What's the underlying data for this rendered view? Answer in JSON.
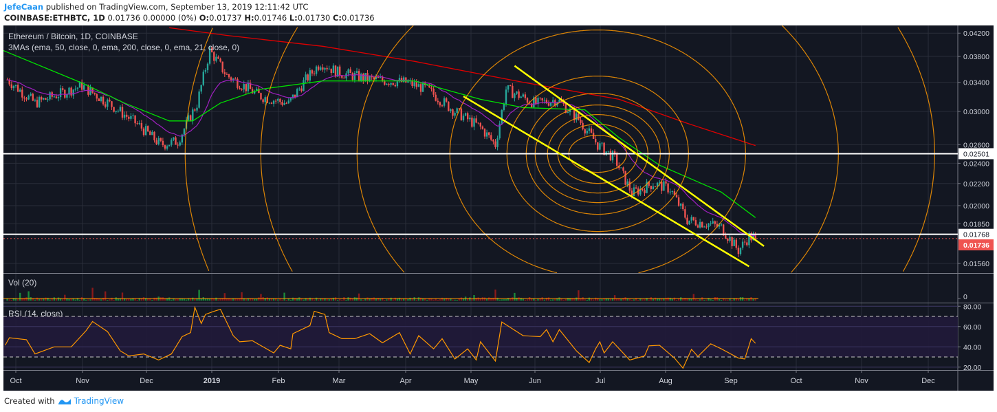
{
  "header": {
    "author": "JefeCaan",
    "published": "published on TradingView.com, September 13, 2019 12:11:42 UTC",
    "symbol": "COINBASE:ETHBTC, 1D",
    "last": "0.01736 0.00000 (0%)",
    "open_label": "O:",
    "open": "0.01737",
    "high_label": "H:",
    "high": "0.01746",
    "low_label": "L:",
    "low": "0.01730",
    "close_label": "C:",
    "close": "0.01736"
  },
  "footer": {
    "created_with": "Created with",
    "brand": "TradingView"
  },
  "colors": {
    "background": "#131722",
    "up": "#26a69a",
    "down": "#ef5350",
    "ema50": "#00e000",
    "ema200": "#e00000",
    "ema21": "#a020c0",
    "fib_circles": "#ff9800",
    "trendlines": "#ffff00",
    "rsi": "#ff9800",
    "rsi_band": "#211a3a"
  },
  "chart_data": [
    {
      "type": "candlestick",
      "title": "Ethereum / Bitcoin, 1D, COINBASE",
      "indicator_label": "3MAs (ema, 50, close, 0, ema, 200, close, 0, ema, 21, close, 0)",
      "scale": "log",
      "ylim": [
        0.015,
        0.0435
      ],
      "y_ticks": [
        "0.04200",
        "0.03800",
        "0.03400",
        "0.03000",
        "0.02600",
        "0.02400",
        "0.02200",
        "0.02000",
        "0.01850",
        "0.01560"
      ],
      "x_ticks": [
        "Oct",
        "Nov",
        "Dec",
        "2019",
        "Feb",
        "Mar",
        "Apr",
        "May",
        "Jun",
        "Jul",
        "Aug",
        "Sep",
        "Oct",
        "Nov",
        "Dec"
      ],
      "grid": true,
      "close_path": [
        [
          "2018-09-27",
          0.0344
        ],
        [
          "2018-10-10",
          0.0311
        ],
        [
          "2018-11-01",
          0.0335
        ],
        [
          "2018-11-14",
          0.031
        ],
        [
          "2018-11-27",
          0.0284
        ],
        [
          "2018-12-08",
          0.026
        ],
        [
          "2018-12-16",
          0.0264
        ],
        [
          "2018-12-25",
          0.031
        ],
        [
          "2018-12-31",
          0.039
        ],
        [
          "2019-01-08",
          0.035
        ],
        [
          "2019-01-24",
          0.032
        ],
        [
          "2019-02-06",
          0.031
        ],
        [
          "2019-02-13",
          0.034
        ],
        [
          "2019-02-21",
          0.037
        ],
        [
          "2019-03-01",
          0.0355
        ],
        [
          "2019-03-17",
          0.0344
        ],
        [
          "2019-04-02",
          0.034
        ],
        [
          "2019-04-12",
          0.033
        ],
        [
          "2019-04-24",
          0.0302
        ],
        [
          "2019-05-07",
          0.028
        ],
        [
          "2019-05-14",
          0.026
        ],
        [
          "2019-05-19",
          0.033
        ],
        [
          "2019-06-02",
          0.031
        ],
        [
          "2019-06-12",
          0.0316
        ],
        [
          "2019-06-22",
          0.029
        ],
        [
          "2019-07-01",
          0.026
        ],
        [
          "2019-07-09",
          0.0245
        ],
        [
          "2019-07-17",
          0.0211
        ],
        [
          "2019-07-27",
          0.022
        ],
        [
          "2019-08-04",
          0.0215
        ],
        [
          "2019-08-12",
          0.0188
        ],
        [
          "2019-08-22",
          0.0185
        ],
        [
          "2019-08-28",
          0.0182
        ],
        [
          "2019-09-05",
          0.0165
        ],
        [
          "2019-09-10",
          0.0175
        ],
        [
          "2019-09-13",
          0.01736
        ]
      ],
      "ema200": [
        [
          "2018-12-12",
          0.043
        ],
        [
          "2019-01-08",
          0.0416
        ],
        [
          "2019-02-22",
          0.0397
        ],
        [
          "2019-04-06",
          0.0372
        ],
        [
          "2019-05-27",
          0.034
        ],
        [
          "2019-07-11",
          0.0316
        ],
        [
          "2019-08-12",
          0.0285
        ],
        [
          "2019-09-13",
          0.0259
        ]
      ],
      "ema50": [
        [
          "2018-09-25",
          0.039
        ],
        [
          "2018-11-01",
          0.0339
        ],
        [
          "2018-11-21",
          0.0311
        ],
        [
          "2018-12-12",
          0.0288
        ],
        [
          "2018-12-23",
          0.0288
        ],
        [
          "2019-01-05",
          0.0311
        ],
        [
          "2019-01-24",
          0.033
        ],
        [
          "2019-02-22",
          0.0342
        ],
        [
          "2019-04-06",
          0.0342
        ],
        [
          "2019-05-07",
          0.0316
        ],
        [
          "2019-05-27",
          0.0305
        ],
        [
          "2019-06-25",
          0.0302
        ],
        [
          "2019-07-11",
          0.0268
        ],
        [
          "2019-07-30",
          0.0238
        ],
        [
          "2019-08-28",
          0.0212
        ],
        [
          "2019-09-13",
          0.019
        ]
      ],
      "horizontal_lines": [
        {
          "price": "0.02501",
          "color": "#ffffff"
        },
        {
          "price": "0.01768",
          "color": "#ffffff"
        }
      ],
      "last_price_label": "0.01736",
      "fib_circle_center": [
        "2019-07-01",
        0.025
      ],
      "trendlines": [
        [
          [
            "2019-05-23",
            0.0365
          ],
          [
            "2019-09-17",
            0.0168
          ]
        ],
        [
          [
            "2019-04-29",
            0.032
          ],
          [
            "2019-09-10",
            0.0154
          ]
        ]
      ]
    },
    {
      "type": "bar",
      "title": "Vol (20)",
      "y_ticks": [
        "0"
      ]
    },
    {
      "type": "line",
      "title": "RSI (14, close)",
      "ylim": [
        14,
        84
      ],
      "y_ticks": [
        "80.00",
        "60.00",
        "40.00",
        "20.00"
      ],
      "bands": [
        30,
        70
      ],
      "points": [
        [
          "2018-09-26",
          41.5
        ],
        [
          "2018-09-28",
          49
        ],
        [
          "2018-10-06",
          47
        ],
        [
          "2018-10-10",
          33
        ],
        [
          "2018-10-19",
          40
        ],
        [
          "2018-10-27",
          40
        ],
        [
          "2018-11-03",
          56
        ],
        [
          "2018-11-06",
          65
        ],
        [
          "2018-11-13",
          55
        ],
        [
          "2018-11-19",
          36
        ],
        [
          "2018-11-23",
          31
        ],
        [
          "2018-11-30",
          33
        ],
        [
          "2018-12-07",
          27
        ],
        [
          "2018-12-13",
          33
        ],
        [
          "2018-12-18",
          50
        ],
        [
          "2018-12-22",
          54
        ],
        [
          "2018-12-24",
          79
        ],
        [
          "2018-12-27",
          63
        ],
        [
          "2018-12-29",
          72
        ],
        [
          "2019-01-02",
          75
        ],
        [
          "2019-01-05",
          77
        ],
        [
          "2019-01-11",
          51
        ],
        [
          "2019-01-14",
          45
        ],
        [
          "2019-01-20",
          46
        ],
        [
          "2019-01-30",
          34
        ],
        [
          "2019-02-02",
          41.5
        ],
        [
          "2019-02-07",
          38
        ],
        [
          "2019-02-08",
          53
        ],
        [
          "2019-02-16",
          61
        ],
        [
          "2019-02-18",
          75
        ],
        [
          "2019-02-23",
          72
        ],
        [
          "2019-02-25",
          54
        ],
        [
          "2019-03-03",
          48
        ],
        [
          "2019-03-09",
          48
        ],
        [
          "2019-03-16",
          53
        ],
        [
          "2019-03-22",
          44
        ],
        [
          "2019-03-30",
          54
        ],
        [
          "2019-04-04",
          33
        ],
        [
          "2019-04-08",
          51
        ],
        [
          "2019-04-15",
          38
        ],
        [
          "2019-04-19",
          48
        ],
        [
          "2019-04-25",
          28
        ],
        [
          "2019-05-01",
          38
        ],
        [
          "2019-05-05",
          27
        ],
        [
          "2019-05-07",
          45
        ],
        [
          "2019-05-14",
          26
        ],
        [
          "2019-05-17",
          64.5
        ],
        [
          "2019-05-27",
          51
        ],
        [
          "2019-06-04",
          50
        ],
        [
          "2019-06-07",
          57
        ],
        [
          "2019-06-10",
          45
        ],
        [
          "2019-06-13",
          57
        ],
        [
          "2019-06-21",
          36
        ],
        [
          "2019-06-27",
          24.5
        ],
        [
          "2019-06-30",
          38
        ],
        [
          "2019-07-02",
          45
        ],
        [
          "2019-07-04",
          34
        ],
        [
          "2019-07-08",
          45
        ],
        [
          "2019-07-16",
          27
        ],
        [
          "2019-07-23",
          31
        ],
        [
          "2019-07-25",
          41
        ],
        [
          "2019-07-30",
          41.5
        ],
        [
          "2019-08-06",
          29
        ],
        [
          "2019-08-10",
          19
        ],
        [
          "2019-08-14",
          37.5
        ],
        [
          "2019-08-17",
          30.5
        ],
        [
          "2019-08-23",
          43
        ],
        [
          "2019-08-28",
          38
        ],
        [
          "2019-09-05",
          29
        ],
        [
          "2019-09-08",
          28
        ],
        [
          "2019-09-11",
          48
        ],
        [
          "2019-09-13",
          43.5
        ]
      ]
    }
  ]
}
